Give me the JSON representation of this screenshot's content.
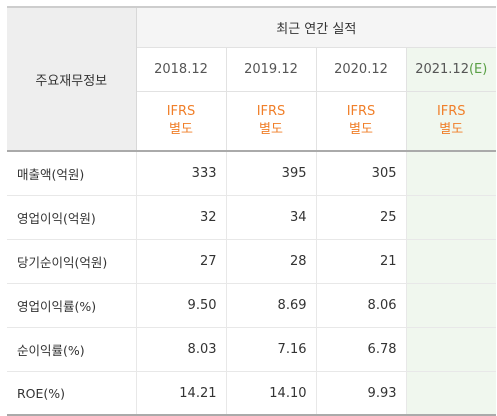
{
  "header": {
    "label_column": "주요재무정보",
    "group_title": "최근 연간 실적",
    "years": [
      "2018.12",
      "2019.12",
      "2020.12"
    ],
    "estimate_year": "2021.12",
    "estimate_marker": "(E)",
    "ifrs_line1": "IFRS",
    "ifrs_line2": "별도"
  },
  "rows": [
    {
      "label": "매출액(억원)",
      "values": [
        "333",
        "395",
        "305",
        ""
      ]
    },
    {
      "label": "영업이익(억원)",
      "values": [
        "32",
        "34",
        "25",
        ""
      ]
    },
    {
      "label": "당기순이익(억원)",
      "values": [
        "27",
        "28",
        "21",
        ""
      ]
    },
    {
      "label": "영업이익률(%)",
      "values": [
        "9.50",
        "8.69",
        "8.06",
        ""
      ]
    },
    {
      "label": "순이익률(%)",
      "values": [
        "8.03",
        "7.16",
        "6.78",
        ""
      ]
    },
    {
      "label": "ROE(%)",
      "values": [
        "14.21",
        "14.10",
        "9.93",
        ""
      ]
    }
  ],
  "colors": {
    "ifrs": "#f07f2a",
    "estimate_bg": "#f0f7ee",
    "estimate_marker": "#5aa046"
  }
}
